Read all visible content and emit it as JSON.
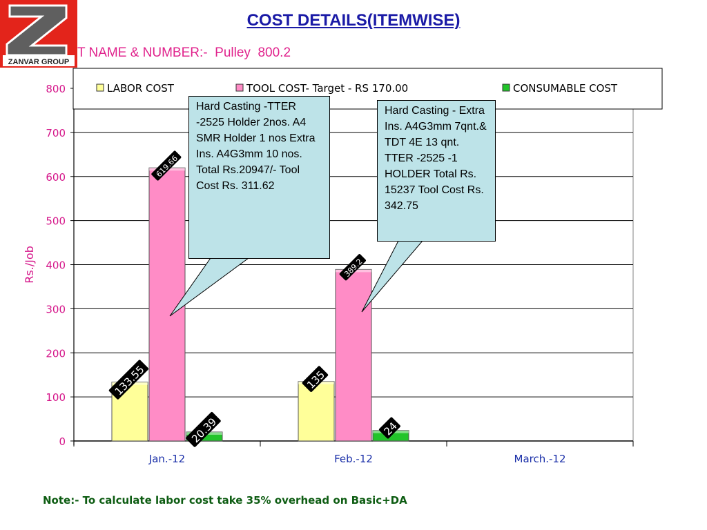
{
  "page": {
    "title": "COST DETAILS(ITEMWISE)",
    "part_label": "T NAME & NUMBER:-  Pulley  800.2",
    "note": "Note:- To calculate labor cost take 35% overhead on Basic+DA"
  },
  "logo": {
    "text": "ZANVAR GROUP",
    "icon": "z-logo-icon",
    "color": "#e3241b"
  },
  "colors": {
    "labor": "#ffff99",
    "tool": "#ff8cc6",
    "consumable": "#22c42a",
    "axis_text": "#d5168a",
    "category_text": "#1a2fa8"
  },
  "chart_data": {
    "type": "bar",
    "categories": [
      "Jan.-12",
      "Feb.-12",
      "March.-12"
    ],
    "series": [
      {
        "name": "LABOR COST",
        "values": [
          133.55,
          135,
          null
        ],
        "labels": [
          "133.55",
          "135",
          ""
        ]
      },
      {
        "name": "TOOL COST- Target - RS 170.00",
        "values": [
          619.66,
          389.2,
          null
        ],
        "labels": [
          "619.66",
          "389.2",
          ""
        ]
      },
      {
        "name": "CONSUMABLE COST",
        "values": [
          20.39,
          24,
          null
        ],
        "labels": [
          "20.39",
          "24",
          ""
        ]
      }
    ],
    "ylabel": "Rs./Job",
    "xlabel": "",
    "ylim": [
      0,
      800
    ],
    "yticks": [
      0,
      100,
      200,
      300,
      400,
      500,
      600,
      700,
      800
    ],
    "grid": true,
    "legend_position": "top",
    "annotations": [
      {
        "category": "Jan.-12",
        "series": "TOOL COST- Target - RS 170.00",
        "text": "Hard Casting -TTER -2525 Holder 2nos. A4 SMR Holder 1 nos Extra Ins. A4G3mm 10 nos. Total  Rs.20947/- Tool Cost Rs. 311.62"
      },
      {
        "category": "Feb.-12",
        "series": "TOOL COST- Target - RS 170.00",
        "text": "Hard Casting - Extra Ins. A4G3mm 7qnt.& TDT 4E 13 qnt. TTER -2525 -1 HOLDER Total Rs. 15237   Tool Cost Rs. 342.75"
      }
    ]
  }
}
